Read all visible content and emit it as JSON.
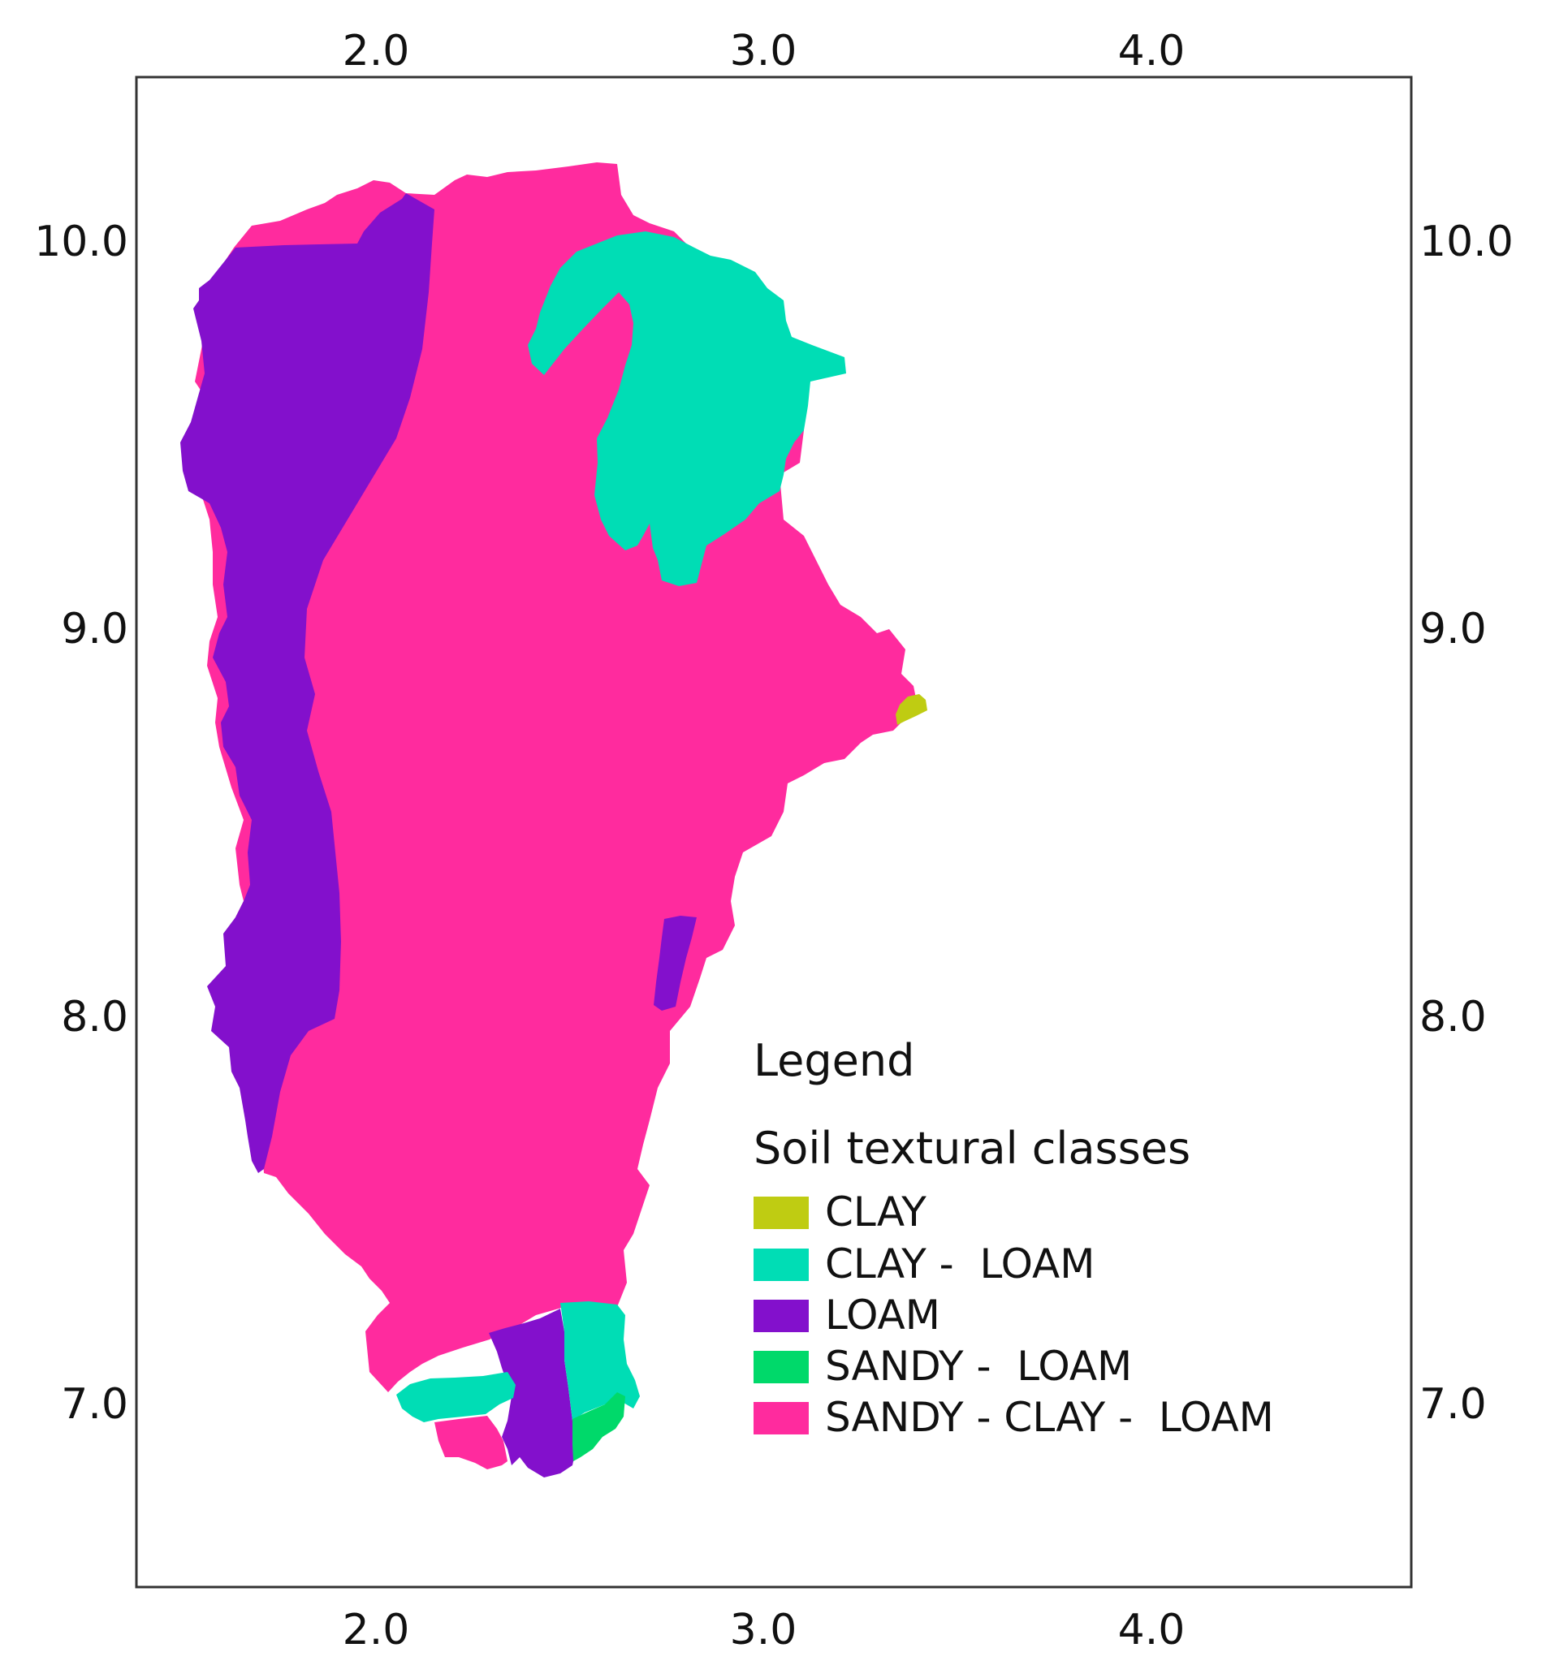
{
  "map": {
    "x_ticks": [
      "2.0",
      "3.0",
      "4.0"
    ],
    "y_ticks": [
      "10.0",
      "9.0",
      "8.0",
      "7.0"
    ]
  },
  "legend": {
    "title": "Legend",
    "subtitle": "Soil textural classes",
    "items": [
      {
        "label": "CLAY",
        "color": "#bfcc12"
      },
      {
        "label": "CLAY -  LOAM",
        "color": "#00ddb5"
      },
      {
        "label": "LOAM",
        "color": "#8310cc"
      },
      {
        "label": "SANDY -  LOAM",
        "color": "#00d96a"
      },
      {
        "label": "SANDY - CLAY -  LOAM",
        "color": "#ff2b9e"
      }
    ]
  }
}
